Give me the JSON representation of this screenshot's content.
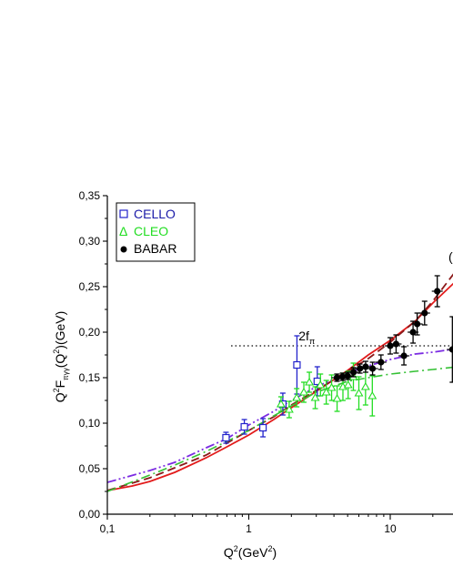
{
  "chart_data": {
    "type": "scatter",
    "xlabel": {
      "base": "Q",
      "sup": "2",
      "rest": "(GeV",
      "sup2": "2",
      "close": ")"
    },
    "ylabel": {
      "base": "Q",
      "sup": "2",
      "F": "F",
      "sub": "πγγ",
      "mid": "(Q",
      "sup2": "2",
      "rest": ")(GeV)"
    },
    "x_scale": "log",
    "xlim": [
      0.1,
      30
    ],
    "ylim": [
      0,
      0.35
    ],
    "x_ticks": [
      {
        "value": 0.1,
        "label": "0,1"
      },
      {
        "value": 1,
        "label": "1"
      },
      {
        "value": 10,
        "label": "10"
      }
    ],
    "y_ticks": [
      {
        "value": 0,
        "label": "0,00"
      },
      {
        "value": 0.05,
        "label": "0,05"
      },
      {
        "value": 0.1,
        "label": "0,10"
      },
      {
        "value": 0.15,
        "label": "0,15"
      },
      {
        "value": 0.2,
        "label": "0,20"
      },
      {
        "value": 0.25,
        "label": "0,25"
      },
      {
        "value": 0.3,
        "label": "0,30"
      },
      {
        "value": 0.35,
        "label": "0,35"
      }
    ],
    "legend_position": "top-left",
    "legend": [
      {
        "name": "CELLO",
        "symbol": "□",
        "color": "#2222cc",
        "text_color": "#1a1aa8"
      },
      {
        "name": "CLEO",
        "symbol": "Δ",
        "color": "#22dd22",
        "text_color": "#22dd22"
      },
      {
        "name": "BABAR",
        "symbol": "●",
        "color": "#000000",
        "text_color": "#000000"
      }
    ],
    "annotation": {
      "text": "2f",
      "sub": "π",
      "y": 0.185,
      "x_text": 2.25
    },
    "hline": {
      "y": 0.185,
      "x_from": 0.75,
      "x_to": 30
    },
    "series": [
      {
        "marker": "square-open",
        "color": "#2222cc",
        "points": [
          {
            "x": 0.69,
            "y": 0.084,
            "err": 0.006
          },
          {
            "x": 0.93,
            "y": 0.096,
            "err": 0.008
          },
          {
            "x": 1.26,
            "y": 0.095,
            "err": 0.01
          },
          {
            "x": 1.74,
            "y": 0.121,
            "err": 0.012
          },
          {
            "x": 2.19,
            "y": 0.164,
            "err": 0.032
          },
          {
            "x": 3.05,
            "y": 0.146,
            "err": 0.016
          }
        ]
      },
      {
        "marker": "triangle-open",
        "color": "#22dd22",
        "points": [
          {
            "x": 1.69,
            "y": 0.121,
            "err": 0.008
          },
          {
            "x": 1.93,
            "y": 0.115,
            "err": 0.009
          },
          {
            "x": 2.18,
            "y": 0.128,
            "err": 0.01
          },
          {
            "x": 2.45,
            "y": 0.134,
            "err": 0.011
          },
          {
            "x": 2.68,
            "y": 0.145,
            "err": 0.011
          },
          {
            "x": 2.95,
            "y": 0.128,
            "err": 0.012
          },
          {
            "x": 3.21,
            "y": 0.142,
            "err": 0.012
          },
          {
            "x": 3.53,
            "y": 0.134,
            "err": 0.013
          },
          {
            "x": 3.85,
            "y": 0.139,
            "err": 0.014
          },
          {
            "x": 4.21,
            "y": 0.127,
            "err": 0.014
          },
          {
            "x": 4.63,
            "y": 0.14,
            "err": 0.015
          },
          {
            "x": 5.04,
            "y": 0.142,
            "err": 0.015
          },
          {
            "x": 5.49,
            "y": 0.151,
            "err": 0.015
          },
          {
            "x": 6.0,
            "y": 0.133,
            "err": 0.018
          },
          {
            "x": 6.69,
            "y": 0.14,
            "err": 0.02
          },
          {
            "x": 7.47,
            "y": 0.13,
            "err": 0.022
          }
        ]
      },
      {
        "marker": "circle-filled",
        "color": "#000000",
        "points": [
          {
            "x": 4.2,
            "y": 0.15,
            "err": 0.004
          },
          {
            "x": 4.6,
            "y": 0.151,
            "err": 0.004
          },
          {
            "x": 5.0,
            "y": 0.152,
            "err": 0.004
          },
          {
            "x": 5.5,
            "y": 0.156,
            "err": 0.005
          },
          {
            "x": 6.1,
            "y": 0.16,
            "err": 0.005
          },
          {
            "x": 6.7,
            "y": 0.162,
            "err": 0.006
          },
          {
            "x": 7.5,
            "y": 0.16,
            "err": 0.007
          },
          {
            "x": 8.6,
            "y": 0.167,
            "err": 0.008
          },
          {
            "x": 10.0,
            "y": 0.185,
            "err": 0.009
          },
          {
            "x": 11.0,
            "y": 0.187,
            "err": 0.01
          },
          {
            "x": 12.5,
            "y": 0.174,
            "err": 0.01
          },
          {
            "x": 14.5,
            "y": 0.2,
            "err": 0.012
          },
          {
            "x": 15.5,
            "y": 0.209,
            "err": 0.012
          },
          {
            "x": 17.5,
            "y": 0.221,
            "err": 0.013
          },
          {
            "x": 21.5,
            "y": 0.245,
            "err": 0.017
          },
          {
            "x": 27.5,
            "y": 0.181,
            "err": 0.036
          }
        ]
      }
    ],
    "curves": [
      {
        "style": "solid",
        "color": "#e21b1b",
        "width": 1.8,
        "points": [
          [
            0.1,
            0.026
          ],
          [
            0.15,
            0.031
          ],
          [
            0.2,
            0.036
          ],
          [
            0.3,
            0.046
          ],
          [
            0.5,
            0.062
          ],
          [
            0.7,
            0.074
          ],
          [
            1.0,
            0.087
          ],
          [
            1.5,
            0.104
          ],
          [
            2.0,
            0.117
          ],
          [
            3.0,
            0.135
          ],
          [
            5.0,
            0.158
          ],
          [
            7.0,
            0.175
          ],
          [
            10.0,
            0.191
          ],
          [
            15.0,
            0.212
          ],
          [
            20.0,
            0.232
          ],
          [
            30.0,
            0.258
          ]
        ]
      },
      {
        "style": "dash",
        "color": "#8b1a1a",
        "width": 1.8,
        "points": [
          [
            0.1,
            0.026
          ],
          [
            0.2,
            0.04
          ],
          [
            0.3,
            0.051
          ],
          [
            0.5,
            0.065
          ],
          [
            0.7,
            0.078
          ],
          [
            1.0,
            0.092
          ],
          [
            1.5,
            0.107
          ],
          [
            2.0,
            0.12
          ],
          [
            3.0,
            0.136
          ],
          [
            5.0,
            0.157
          ],
          [
            7.0,
            0.171
          ],
          [
            10.0,
            0.189
          ],
          [
            15.0,
            0.212
          ],
          [
            20.0,
            0.234
          ],
          [
            30.0,
            0.27
          ]
        ]
      },
      {
        "style": "dashdotdot",
        "color": "#7b2be2",
        "width": 1.8,
        "points": [
          [
            0.1,
            0.035
          ],
          [
            0.2,
            0.048
          ],
          [
            0.3,
            0.057
          ],
          [
            0.5,
            0.073
          ],
          [
            0.7,
            0.083
          ],
          [
            1.0,
            0.098
          ],
          [
            1.5,
            0.113
          ],
          [
            2.0,
            0.125
          ],
          [
            3.0,
            0.14
          ],
          [
            5.0,
            0.155
          ],
          [
            7.0,
            0.163
          ],
          [
            10.0,
            0.17
          ],
          [
            15.0,
            0.176
          ],
          [
            20.0,
            0.178
          ],
          [
            30.0,
            0.182
          ]
        ]
      },
      {
        "style": "dashdot",
        "color": "#35c135",
        "width": 1.6,
        "points": [
          [
            0.1,
            0.025
          ],
          [
            0.2,
            0.043
          ],
          [
            0.3,
            0.054
          ],
          [
            0.5,
            0.069
          ],
          [
            0.7,
            0.08
          ],
          [
            1.0,
            0.092
          ],
          [
            1.5,
            0.108
          ],
          [
            2.0,
            0.119
          ],
          [
            3.0,
            0.134
          ],
          [
            5.0,
            0.146
          ],
          [
            7.0,
            0.15
          ],
          [
            10.0,
            0.154
          ],
          [
            15.0,
            0.157
          ],
          [
            20.0,
            0.159
          ],
          [
            30.0,
            0.162
          ]
        ]
      }
    ]
  }
}
